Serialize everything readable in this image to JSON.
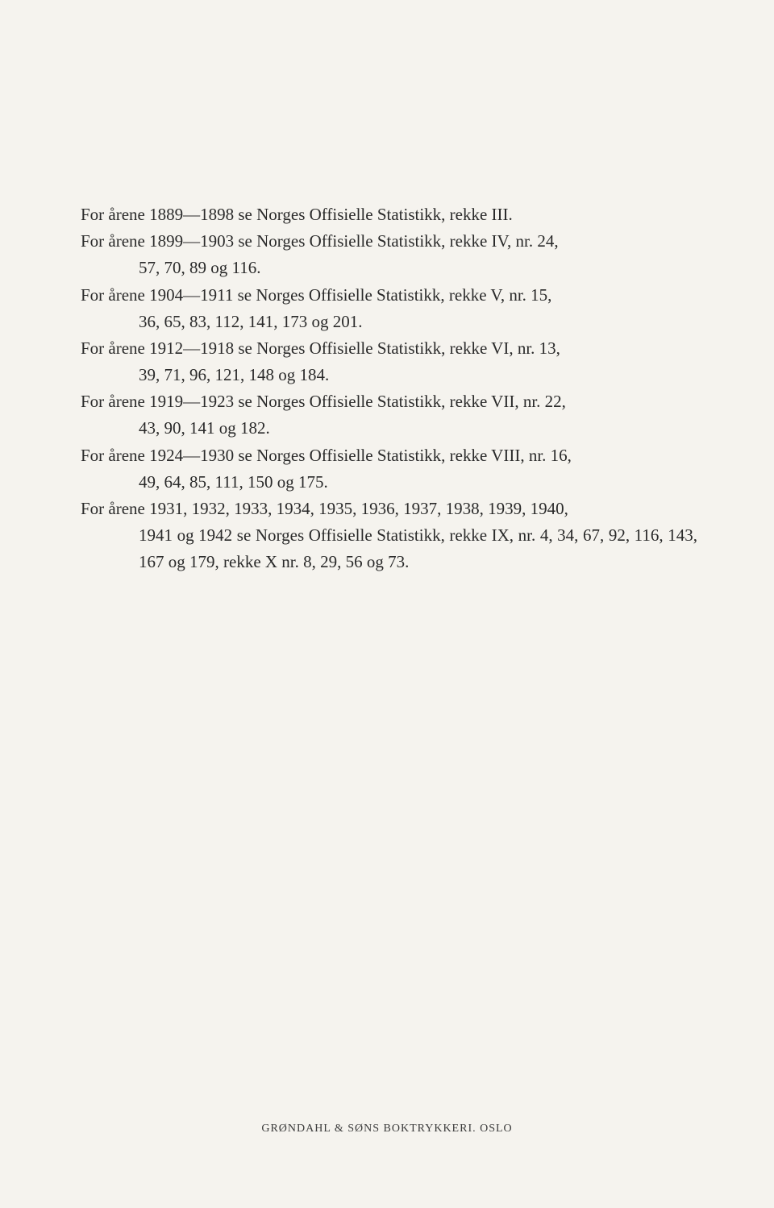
{
  "document": {
    "background_color": "#f5f3ee",
    "text_color": "#2a2a2a",
    "font_family": "Georgia, 'Times New Roman', serif",
    "body_fontsize": 21,
    "line_height": 1.58,
    "footer_fontsize": 14,
    "entries": [
      {
        "line1": "For årene 1889—1898 se Norges Offisielle Statistikk, rekke III.",
        "line2": null
      },
      {
        "line1": "For årene 1899—1903 se Norges Offisielle Statistikk, rekke IV, nr. 24,",
        "line2": "57, 70, 89 og 116."
      },
      {
        "line1": "For årene 1904—1911 se Norges Offisielle Statistikk, rekke V, nr. 15,",
        "line2": "36, 65, 83, 112, 141, 173 og 201."
      },
      {
        "line1": "For årene 1912—1918 se Norges Offisielle Statistikk, rekke VI, nr. 13,",
        "line2": "39, 71, 96, 121, 148 og 184."
      },
      {
        "line1": "For årene 1919—1923 se Norges Offisielle Statistikk, rekke VII, nr. 22,",
        "line2": "43, 90, 141 og 182."
      },
      {
        "line1": "For årene 1924—1930 se Norges Offisielle Statistikk, rekke VIII, nr. 16,",
        "line2": "49, 64, 85, 111, 150 og 175."
      },
      {
        "line1": "For årene 1931, 1932, 1933, 1934, 1935, 1936, 1937, 1938, 1939, 1940,",
        "line2": "1941 og 1942 se Norges Offisielle Statistikk, rekke IX, nr. 4, 34, 67, 92, 116, 143, 167 og 179, rekke X nr. 8, 29, 56 og 73."
      }
    ],
    "footer": "GRØNDAHL & SØNS BOKTRYKKERI. OSLO"
  }
}
